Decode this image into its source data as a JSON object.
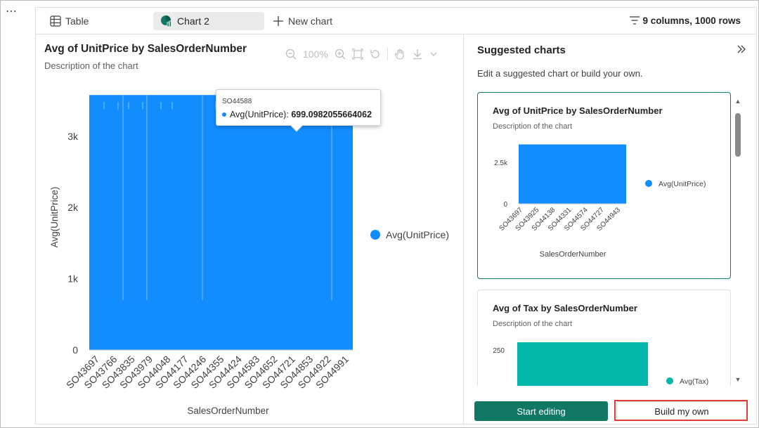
{
  "app": {
    "more_label": "⋯"
  },
  "toolbar": {
    "tabs": [
      {
        "label": "Table",
        "icon": "table-icon"
      },
      {
        "label": "Chart 2",
        "icon": "chart-icon",
        "active": true
      },
      {
        "label": "New chart",
        "icon": "plus-icon"
      }
    ],
    "summary": "9 columns, 1000 rows"
  },
  "chart_panel": {
    "title": "Avg of UnitPrice by SalesOrderNumber",
    "description": "Description of the chart",
    "zoom_level": "100%",
    "tooltip": {
      "category": "SO44588",
      "series": "Avg(UnitPrice):",
      "value": "699.0982055664062"
    }
  },
  "chart_data": [
    {
      "type": "bar",
      "title": "Avg of UnitPrice by SalesOrderNumber",
      "xlabel": "SalesOrderNumber",
      "ylabel": "Avg(UnitPrice)",
      "ylim": [
        0,
        3600
      ],
      "yticks": [
        0,
        1000,
        2000,
        3000
      ],
      "ytick_labels": [
        "0",
        "1k",
        "2k",
        "3k"
      ],
      "xtick_labels": [
        "SO43697",
        "SO43766",
        "SO43835",
        "SO43979",
        "SO44048",
        "SO44177",
        "SO44246",
        "SO44355",
        "SO44424",
        "SO44583",
        "SO44652",
        "SO44721",
        "SO44853",
        "SO44922",
        "SO44991"
      ],
      "dense_bar_level": 3578.27,
      "dip_level": 699.1,
      "color": "#118dff",
      "series": [
        {
          "name": "Avg(UnitPrice)"
        }
      ],
      "legend_position": "right"
    },
    {
      "type": "bar",
      "title": "Avg of UnitPrice by SalesOrderNumber",
      "xlabel": "SalesOrderNumber",
      "ylim": [
        0,
        3600
      ],
      "yticks": [
        0,
        2500
      ],
      "ytick_labels": [
        "0",
        "2.5k"
      ],
      "xtick_labels": [
        "SO43697",
        "SO43925",
        "SO44138",
        "SO44331",
        "SO44574",
        "SO44727",
        "SO44943"
      ],
      "dense_bar_level": 3578.27,
      "color": "#118dff",
      "series": [
        {
          "name": "Avg(UnitPrice)"
        }
      ],
      "legend_position": "right"
    },
    {
      "type": "bar",
      "title": "Avg of Tax by SalesOrderNumber",
      "yticks": [
        250
      ],
      "ytick_labels": [
        "250"
      ],
      "color": "#01b8aa",
      "series": [
        {
          "name": "Avg(Tax)"
        }
      ],
      "legend_position": "right"
    }
  ],
  "suggestions": {
    "title": "Suggested charts",
    "subtitle": "Edit a suggested chart or build your own.",
    "cards": [
      {
        "title": "Avg of UnitPrice by SalesOrderNumber",
        "description": "Description of the chart"
      },
      {
        "title": "Avg of Tax by SalesOrderNumber",
        "description": "Description of the chart"
      }
    ]
  },
  "actions": {
    "start_editing": "Start editing",
    "build_own": "Build my own"
  },
  "colors": {
    "accent": "#117865",
    "series_blue": "#118dff",
    "series_teal": "#01b8aa",
    "highlight": "#e03a3a"
  }
}
